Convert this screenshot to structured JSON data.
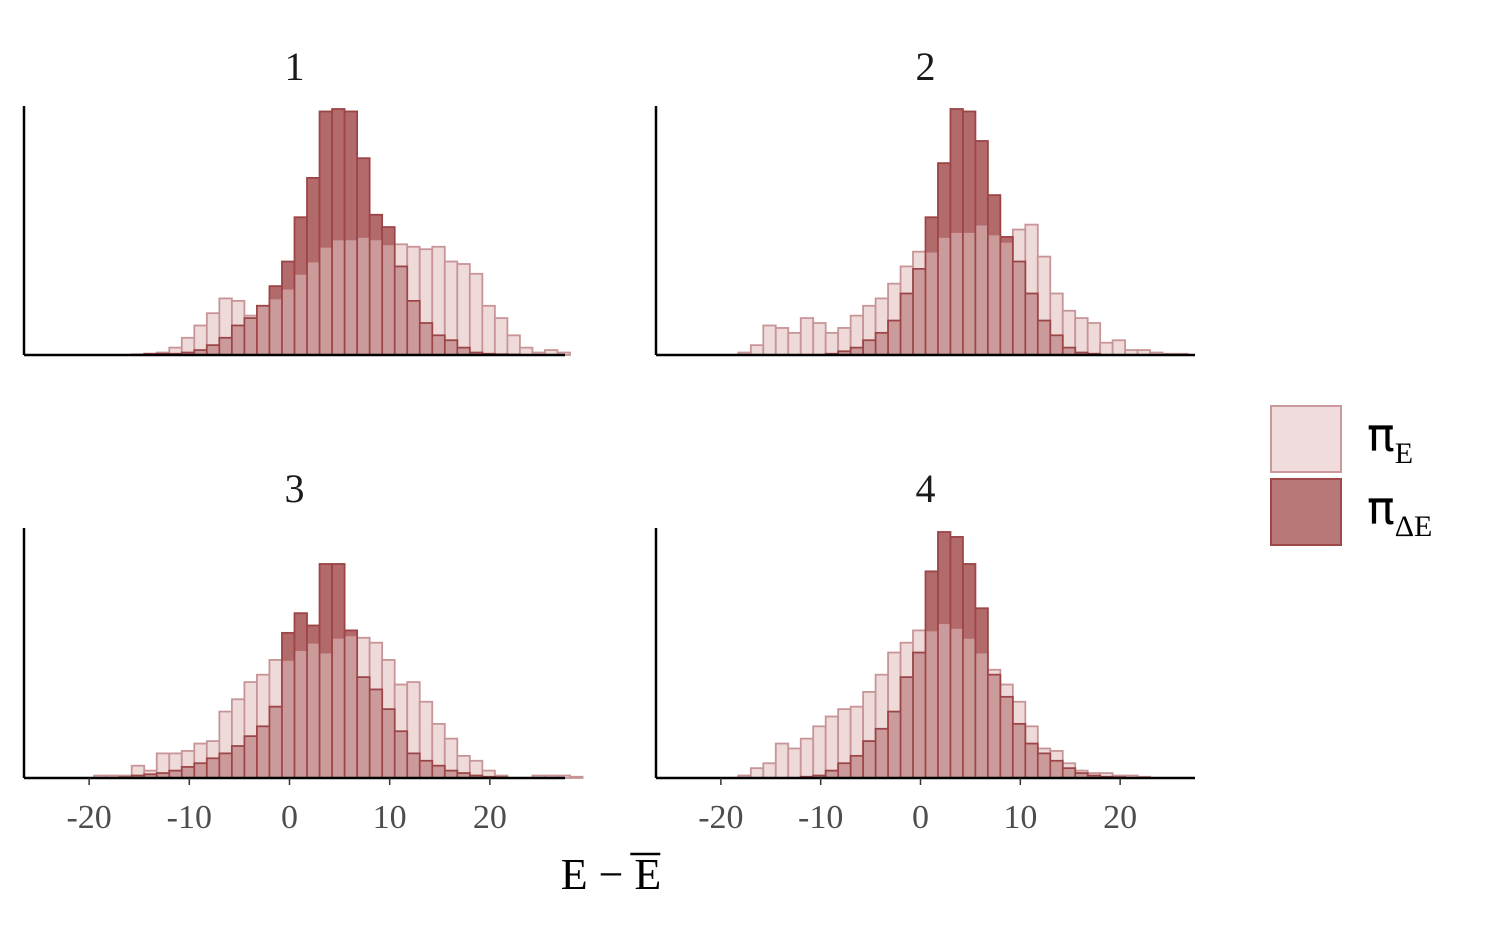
{
  "chart_data": {
    "type": "histogram",
    "xlabel": "E − E̅",
    "xlim": [
      -26.5,
      27.5
    ],
    "xticks": [
      -20,
      -10,
      0,
      10,
      20
    ],
    "xtick_labels": [
      "-20",
      "-10",
      "0",
      "10",
      "20"
    ],
    "bin_start": -19.5,
    "bin_width": 1.25,
    "legend": {
      "placement": "right",
      "entries": [
        {
          "symbol": "π",
          "subscript": "E",
          "fill": "#f0dcdc",
          "stroke": "#c9999b"
        },
        {
          "symbol": "π",
          "subscript": "ΔE",
          "fill": "#b87878",
          "stroke": "#a04848"
        }
      ]
    },
    "colors": {
      "pi_E_fill": "#efdada",
      "pi_E_stroke": "#c79597",
      "pi_dE_fill": "#b36a6b",
      "pi_dE_stroke": "#9c4547",
      "overlap_fill": "#cb9a9b"
    },
    "panels": [
      {
        "title": "1",
        "pi_E": [
          0,
          0,
          0,
          0.2,
          0.5,
          1,
          3,
          7,
          12,
          17,
          23,
          22,
          16,
          20,
          23,
          27,
          33,
          38,
          44,
          47,
          47,
          48,
          47,
          45,
          45,
          44,
          43,
          44,
          38,
          37,
          33,
          20,
          15,
          8,
          3,
          1,
          2,
          1,
          0,
          0,
          0,
          0
        ],
        "pi_dE": [
          0,
          0,
          0,
          0.2,
          0.5,
          0.5,
          0.5,
          1,
          2,
          4,
          7,
          12,
          15,
          20,
          28,
          38,
          56,
          72,
          99,
          100,
          99,
          80,
          57,
          52,
          36,
          22,
          13,
          8,
          6,
          3,
          1,
          0.5,
          0.3,
          0.2,
          0,
          0,
          0,
          0,
          0,
          0,
          0,
          0
        ]
      },
      {
        "title": "2",
        "pi_E": [
          0,
          1,
          4,
          12,
          11,
          9,
          15,
          13,
          9,
          11,
          16,
          20,
          23,
          29,
          36,
          42,
          42,
          48,
          50,
          50,
          53,
          49,
          46,
          51,
          53,
          40,
          25,
          18,
          15,
          13,
          5,
          6,
          2,
          2,
          1,
          0.5,
          0.5,
          0,
          0,
          0,
          0,
          0
        ],
        "pi_dE": [
          0,
          0,
          0,
          0,
          0,
          0,
          0,
          0,
          0.5,
          1.5,
          3,
          6,
          9,
          14,
          25,
          35,
          56,
          78,
          100,
          99,
          87,
          65,
          48,
          38,
          25,
          14,
          8,
          3,
          1,
          0.5,
          0,
          0,
          0,
          0,
          0,
          0,
          0,
          0,
          0,
          0,
          0,
          0
        ]
      },
      {
        "title": "3",
        "pi_E": [
          1,
          1,
          1,
          5,
          3,
          10,
          10,
          11,
          14,
          15,
          27,
          32,
          39,
          42,
          48,
          48,
          52,
          55,
          51,
          57,
          58,
          57,
          55,
          48,
          38,
          39,
          31,
          22,
          16,
          9,
          7,
          3,
          1,
          0,
          0,
          1,
          1,
          1,
          0.5,
          0,
          0,
          0
        ],
        "pi_dE": [
          0,
          0,
          0.3,
          1,
          1.5,
          2,
          3,
          4.5,
          6,
          8,
          10,
          13,
          17,
          21,
          29,
          59,
          67,
          62,
          87,
          87,
          60,
          41,
          36,
          28,
          19,
          10,
          7,
          5,
          3,
          2,
          1,
          0.5,
          0.3,
          0,
          0,
          0,
          0,
          0,
          0,
          0,
          0,
          0
        ]
      },
      {
        "title": "4",
        "pi_E": [
          0,
          1,
          4,
          6,
          14,
          12,
          16,
          21,
          25,
          28,
          29,
          35,
          42,
          51,
          55,
          60,
          60,
          63,
          61,
          57,
          51,
          44,
          38,
          31,
          21,
          12,
          11,
          6,
          3,
          2,
          2,
          1,
          1,
          0.5,
          0,
          0,
          0,
          0,
          0,
          0,
          0,
          0
        ],
        "pi_dE": [
          0,
          0,
          0,
          0,
          0,
          0,
          0.5,
          1,
          3,
          6,
          9,
          15,
          20,
          27,
          41,
          51,
          84,
          100,
          98,
          87,
          69,
          42,
          33,
          22,
          14,
          10,
          7,
          4,
          2,
          1,
          0.5,
          0.3,
          0,
          0,
          0,
          0,
          0,
          0,
          0,
          0,
          0,
          0
        ]
      }
    ]
  }
}
